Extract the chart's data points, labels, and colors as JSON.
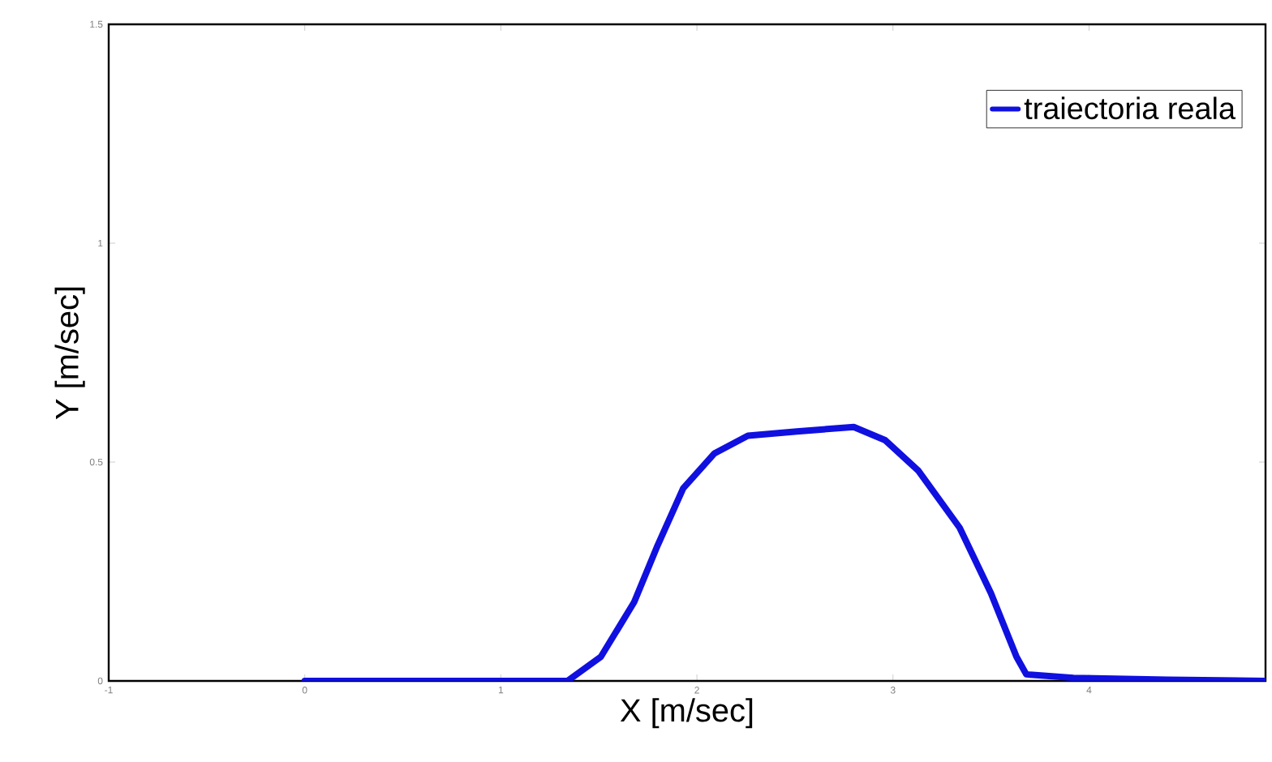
{
  "chart_data": {
    "type": "line",
    "xlabel": "X [m/sec]",
    "ylabel": "Y [m/sec]",
    "xlim": [
      -1,
      4.9
    ],
    "ylim": [
      0,
      1.5
    ],
    "xticks": [
      -1,
      0,
      1,
      2,
      3,
      4
    ],
    "yticks": [
      0,
      0.5,
      1,
      1.5
    ],
    "legend": "top right",
    "grid": false,
    "series": [
      {
        "name": "traiectoria reala",
        "color": "#1010e0",
        "x": [
          0,
          0.5,
          1,
          1.34,
          1.51,
          1.68,
          1.8,
          1.93,
          2.09,
          2.26,
          2.51,
          2.8,
          2.96,
          3.13,
          3.34,
          3.5,
          3.63,
          3.68,
          3.92,
          4.4,
          4.9
        ],
        "values": [
          0,
          0,
          0,
          0,
          0.055,
          0.18,
          0.31,
          0.44,
          0.52,
          0.56,
          0.57,
          0.58,
          0.55,
          0.48,
          0.35,
          0.2,
          0.055,
          0.015,
          0.007,
          0.003,
          0
        ]
      }
    ]
  }
}
